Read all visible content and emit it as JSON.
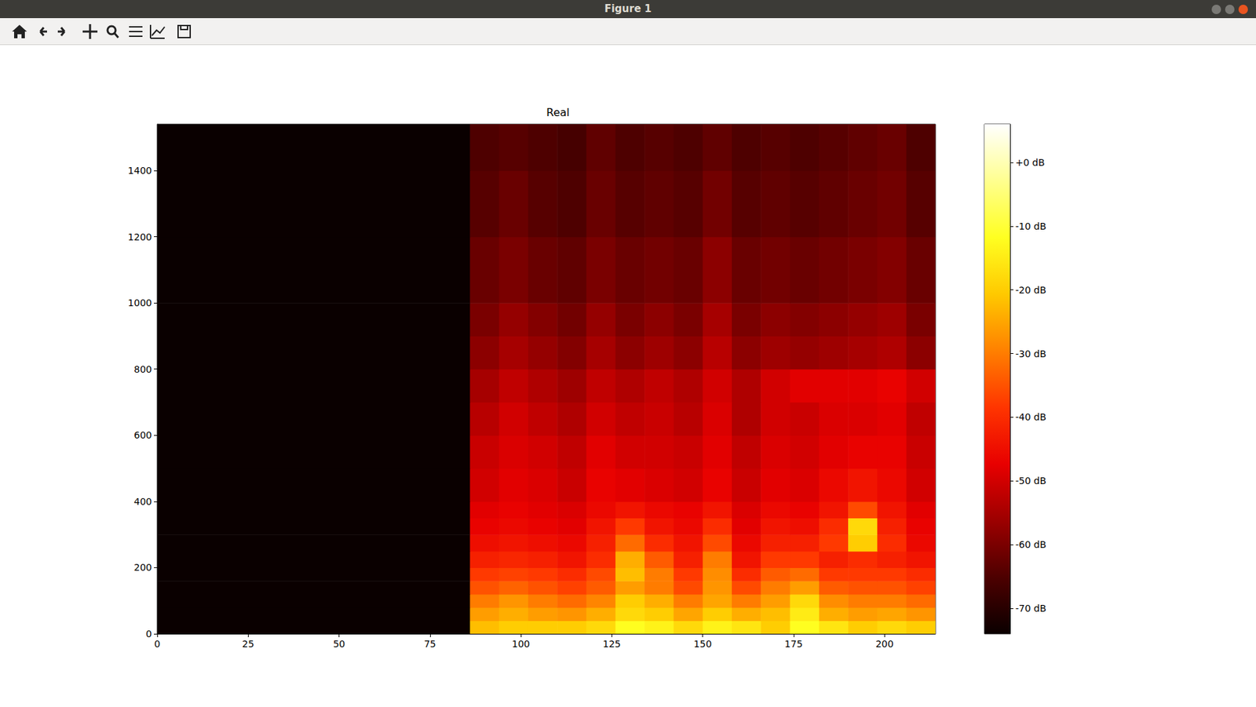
{
  "window": {
    "title": "Figure 1"
  },
  "chart_data": {
    "type": "heatmap",
    "title": "Real",
    "x_edges": [
      0,
      86,
      94,
      102,
      110,
      118,
      126,
      134,
      142,
      150,
      158,
      166,
      174,
      182,
      190,
      198,
      206,
      214
    ],
    "y_edges": [
      0,
      40,
      80,
      120,
      160,
      200,
      250,
      300,
      350,
      400,
      500,
      600,
      700,
      800,
      900,
      1000,
      1200,
      1400,
      1540
    ],
    "cells": [
      [
        -74,
        -22,
        -20,
        -20,
        -20,
        -18,
        -12,
        -14,
        -18,
        -14,
        -16,
        -20,
        -12,
        -16,
        -20,
        -18,
        -20
      ],
      [
        -74,
        -26,
        -24,
        -26,
        -27,
        -24,
        -18,
        -20,
        -25,
        -20,
        -24,
        -22,
        -15,
        -24,
        -26,
        -25,
        -27
      ],
      [
        -74,
        -30,
        -27,
        -30,
        -32,
        -29,
        -20,
        -24,
        -30,
        -25,
        -30,
        -26,
        -18,
        -28,
        -30,
        -30,
        -32
      ],
      [
        -74,
        -35,
        -33,
        -35,
        -37,
        -34,
        -26,
        -30,
        -36,
        -27,
        -36,
        -30,
        -26,
        -34,
        -35,
        -35,
        -37
      ],
      [
        -74,
        -38,
        -37,
        -38,
        -40,
        -36,
        -22,
        -30,
        -38,
        -28,
        -40,
        -34,
        -32,
        -38,
        -38,
        -38,
        -40
      ],
      [
        -74,
        -42,
        -41,
        -42,
        -44,
        -40,
        -24,
        -34,
        -42,
        -30,
        -44,
        -38,
        -38,
        -42,
        -40,
        -42,
        -44
      ],
      [
        -74,
        -45,
        -44,
        -45,
        -46,
        -42,
        -32,
        -40,
        -44,
        -36,
        -46,
        -42,
        -42,
        -38,
        -20,
        -40,
        -46
      ],
      [
        -74,
        -47,
        -46,
        -47,
        -48,
        -44,
        -38,
        -44,
        -46,
        -40,
        -48,
        -44,
        -45,
        -40,
        -18,
        -42,
        -47
      ],
      [
        -74,
        -48,
        -47,
        -48,
        -49,
        -46,
        -44,
        -46,
        -47,
        -44,
        -49,
        -46,
        -47,
        -44,
        -36,
        -44,
        -48
      ],
      [
        -74,
        -50,
        -48,
        -49,
        -51,
        -47,
        -48,
        -49,
        -50,
        -47,
        -51,
        -48,
        -49,
        -46,
        -44,
        -46,
        -50
      ],
      [
        -74,
        -51,
        -49,
        -50,
        -52,
        -48,
        -50,
        -50,
        -51,
        -48,
        -52,
        -49,
        -50,
        -48,
        -47,
        -47,
        -51
      ],
      [
        -74,
        -53,
        -50,
        -52,
        -54,
        -50,
        -52,
        -51,
        -53,
        -49,
        -54,
        -50,
        -51,
        -49,
        -49,
        -48,
        -52
      ],
      [
        -74,
        -55,
        -52,
        -54,
        -56,
        -52,
        -54,
        -52,
        -54,
        -50,
        -54,
        -50,
        -48,
        -48,
        -48,
        -47,
        -50
      ],
      [
        -74,
        -58,
        -55,
        -57,
        -59,
        -55,
        -58,
        -56,
        -58,
        -53,
        -58,
        -56,
        -57,
        -56,
        -55,
        -54,
        -58
      ],
      [
        -74,
        -60,
        -57,
        -59,
        -61,
        -57,
        -60,
        -58,
        -60,
        -55,
        -60,
        -58,
        -59,
        -58,
        -57,
        -56,
        -60
      ],
      [
        -74,
        -62,
        -60,
        -62,
        -63,
        -60,
        -62,
        -61,
        -62,
        -58,
        -62,
        -61,
        -62,
        -61,
        -60,
        -59,
        -62
      ],
      [
        -74,
        -64,
        -62,
        -64,
        -65,
        -62,
        -64,
        -63,
        -64,
        -61,
        -64,
        -63,
        -64,
        -63,
        -62,
        -61,
        -64
      ],
      [
        -74,
        -65,
        -64,
        -65,
        -66,
        -63,
        -65,
        -64,
        -65,
        -63,
        -65,
        -64,
        -65,
        -64,
        -63,
        -62,
        -65
      ]
    ],
    "xlim": [
      0,
      214
    ],
    "xticks": [
      0,
      25,
      50,
      75,
      100,
      125,
      150,
      175,
      200
    ],
    "ylim": [
      0,
      1540
    ],
    "yticks": [
      0,
      200,
      400,
      600,
      800,
      1000,
      1200,
      1400
    ],
    "colorbar": {
      "range": [
        -74,
        6
      ],
      "ticks": [
        {
          "value": 0,
          "label": "+0 dB"
        },
        {
          "value": -10,
          "label": "-10 dB"
        },
        {
          "value": -20,
          "label": "-20 dB"
        },
        {
          "value": -30,
          "label": "-30 dB"
        },
        {
          "value": -40,
          "label": "-40 dB"
        },
        {
          "value": -50,
          "label": "-50 dB"
        },
        {
          "value": -60,
          "label": "-60 dB"
        },
        {
          "value": -70,
          "label": "-70 dB"
        }
      ]
    },
    "grid": false
  }
}
